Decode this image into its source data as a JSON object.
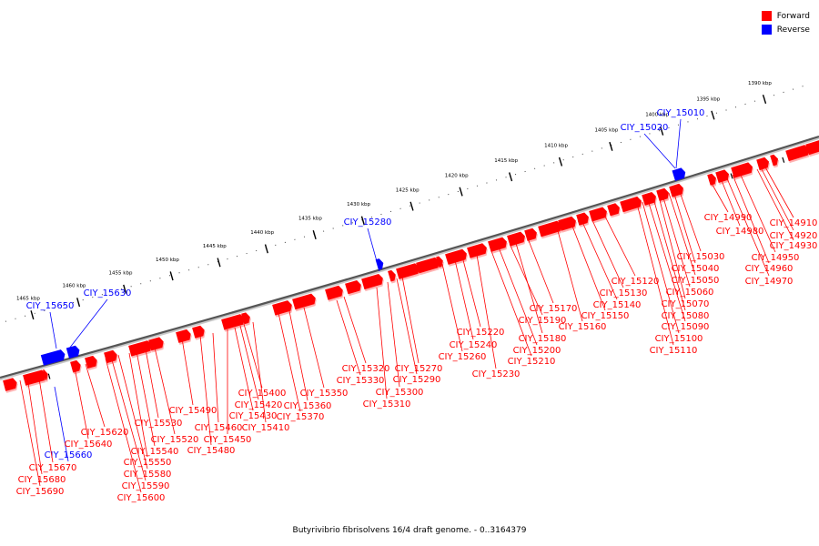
{
  "legend": {
    "forward": {
      "label": "Forward",
      "color": "#ff0000"
    },
    "reverse": {
      "label": "Reverse",
      "color": "#0000ff"
    }
  },
  "caption": "Butyrivibrio fibrisolvens 16/4 draft genome. - 0..3164379",
  "ruler": {
    "unit": "kbp",
    "ticks": [
      1390,
      1395,
      1400,
      1405,
      1410,
      1415,
      1420,
      1425,
      1430,
      1435,
      1440,
      1445,
      1450,
      1455,
      1460,
      1465
    ]
  },
  "genes": [
    {
      "name": "CIY_15010",
      "strand": "reverse"
    },
    {
      "name": "CIY_15020",
      "strand": "reverse"
    },
    {
      "name": "CIY_15280",
      "strand": "reverse"
    },
    {
      "name": "CIY_15630",
      "strand": "reverse"
    },
    {
      "name": "CIY_15650",
      "strand": "reverse"
    },
    {
      "name": "CIY_15660",
      "strand": "reverse"
    },
    {
      "name": "CIY_14910",
      "strand": "forward"
    },
    {
      "name": "CIY_14920",
      "strand": "forward"
    },
    {
      "name": "CIY_14930",
      "strand": "forward"
    },
    {
      "name": "CIY_14950",
      "strand": "forward"
    },
    {
      "name": "CIY_14960",
      "strand": "forward"
    },
    {
      "name": "CIY_14970",
      "strand": "forward"
    },
    {
      "name": "CIY_14980",
      "strand": "forward"
    },
    {
      "name": "CIY_14990",
      "strand": "forward"
    },
    {
      "name": "CIY_15030",
      "strand": "forward"
    },
    {
      "name": "CIY_15040",
      "strand": "forward"
    },
    {
      "name": "CIY_15050",
      "strand": "forward"
    },
    {
      "name": "CIY_15060",
      "strand": "forward"
    },
    {
      "name": "CIY_15070",
      "strand": "forward"
    },
    {
      "name": "CIY_15080",
      "strand": "forward"
    },
    {
      "name": "CIY_15090",
      "strand": "forward"
    },
    {
      "name": "CIY_15100",
      "strand": "forward"
    },
    {
      "name": "CIY_15110",
      "strand": "forward"
    },
    {
      "name": "CIY_15120",
      "strand": "forward"
    },
    {
      "name": "CIY_15130",
      "strand": "forward"
    },
    {
      "name": "CIY_15140",
      "strand": "forward"
    },
    {
      "name": "CIY_15150",
      "strand": "forward"
    },
    {
      "name": "CIY_15160",
      "strand": "forward"
    },
    {
      "name": "CIY_15170",
      "strand": "forward"
    },
    {
      "name": "CIY_15180",
      "strand": "forward"
    },
    {
      "name": "CIY_15190",
      "strand": "forward"
    },
    {
      "name": "CIY_15200",
      "strand": "forward"
    },
    {
      "name": "CIY_15210",
      "strand": "forward"
    },
    {
      "name": "CIY_15220",
      "strand": "forward"
    },
    {
      "name": "CIY_15230",
      "strand": "forward"
    },
    {
      "name": "CIY_15240",
      "strand": "forward"
    },
    {
      "name": "CIY_15260",
      "strand": "forward"
    },
    {
      "name": "CIY_15270",
      "strand": "forward"
    },
    {
      "name": "CIY_15290",
      "strand": "forward"
    },
    {
      "name": "CIY_15300",
      "strand": "forward"
    },
    {
      "name": "CIY_15310",
      "strand": "forward"
    },
    {
      "name": "CIY_15320",
      "strand": "forward"
    },
    {
      "name": "CIY_15330",
      "strand": "forward"
    },
    {
      "name": "CIY_15350",
      "strand": "forward"
    },
    {
      "name": "CIY_15360",
      "strand": "forward"
    },
    {
      "name": "CIY_15370",
      "strand": "forward"
    },
    {
      "name": "CIY_15400",
      "strand": "forward"
    },
    {
      "name": "CIY_15410",
      "strand": "forward"
    },
    {
      "name": "CIY_15420",
      "strand": "forward"
    },
    {
      "name": "CIY_15430",
      "strand": "forward"
    },
    {
      "name": "CIY_15450",
      "strand": "forward"
    },
    {
      "name": "CIY_15460",
      "strand": "forward"
    },
    {
      "name": "CIY_15480",
      "strand": "forward"
    },
    {
      "name": "CIY_15490",
      "strand": "forward"
    },
    {
      "name": "CIY_15520",
      "strand": "forward"
    },
    {
      "name": "CIY_15530",
      "strand": "forward"
    },
    {
      "name": "CIY_15540",
      "strand": "forward"
    },
    {
      "name": "CIY_15550",
      "strand": "forward"
    },
    {
      "name": "CIY_15580",
      "strand": "forward"
    },
    {
      "name": "CIY_15590",
      "strand": "forward"
    },
    {
      "name": "CIY_15600",
      "strand": "forward"
    },
    {
      "name": "CIY_15620",
      "strand": "forward"
    },
    {
      "name": "CIY_15640",
      "strand": "forward"
    },
    {
      "name": "CIY_15670",
      "strand": "forward"
    },
    {
      "name": "CIY_15680",
      "strand": "forward"
    },
    {
      "name": "CIY_15690",
      "strand": "forward"
    }
  ]
}
